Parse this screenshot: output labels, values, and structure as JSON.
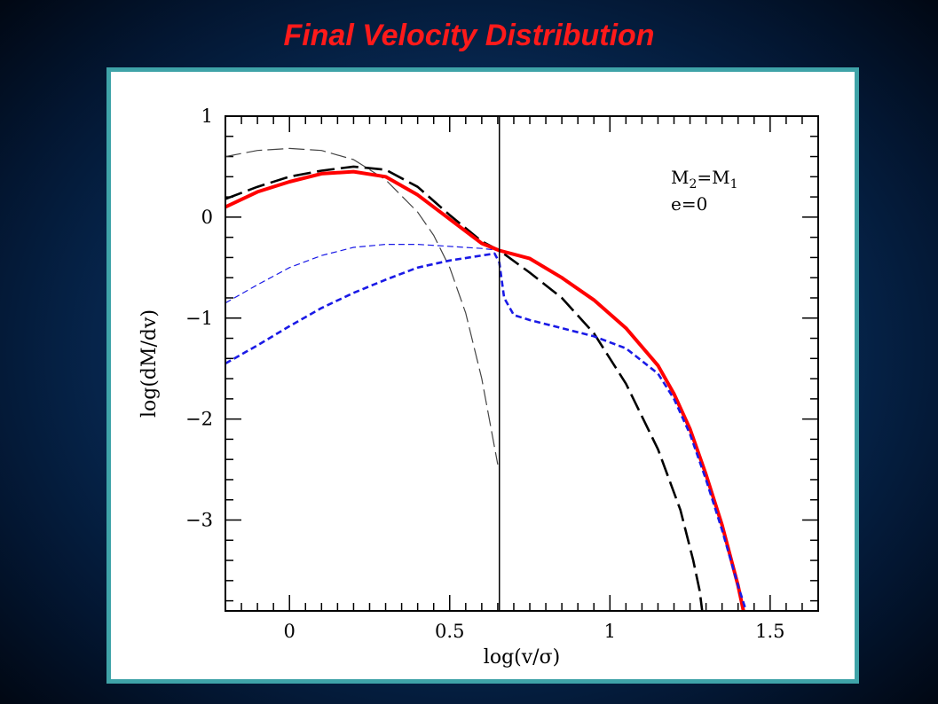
{
  "slide": {
    "title": "Final Velocity Distribution"
  },
  "colors": {
    "title": "#ff1a1a",
    "card_border": "#3fa3a8",
    "total_curve": "#ff0000",
    "blue_curve": "#1a1ae6",
    "black_curve": "#000000",
    "gray_curve": "#444444"
  },
  "chart_data": {
    "type": "line",
    "title": "",
    "xlabel": "log(v/σ)",
    "ylabel": "log(dM/dv)",
    "xlim": [
      -0.2,
      1.65
    ],
    "ylim": [
      -3.9,
      1.0
    ],
    "xticks": [
      0,
      0.5,
      1,
      1.5
    ],
    "xtick_labels": [
      "0",
      "0.5",
      "1",
      "1.5"
    ],
    "yticks": [
      1,
      0,
      -1,
      -2,
      -3
    ],
    "ytick_labels": [
      "1",
      "0",
      "−1",
      "−2",
      "−3"
    ],
    "grid": false,
    "vertical_line_x": 0.655,
    "annotation": {
      "line1_main": "M",
      "line1_sub1": "2",
      "line1_eq": "=M",
      "line1_sub2": "1",
      "line2": "e=0"
    },
    "series": [
      {
        "style": "solid-thick-red",
        "x": [
          -0.2,
          -0.1,
          0.0,
          0.1,
          0.2,
          0.3,
          0.4,
          0.5,
          0.6,
          0.655,
          0.75,
          0.85,
          0.95,
          1.05,
          1.15,
          1.2,
          1.25,
          1.3,
          1.35,
          1.4,
          1.42
        ],
        "y": [
          0.1,
          0.25,
          0.35,
          0.43,
          0.45,
          0.4,
          0.22,
          -0.02,
          -0.26,
          -0.33,
          -0.41,
          -0.6,
          -0.82,
          -1.1,
          -1.47,
          -1.75,
          -2.1,
          -2.55,
          -3.05,
          -3.65,
          -3.95
        ]
      },
      {
        "style": "long-dash-black",
        "x": [
          -0.2,
          -0.1,
          0.0,
          0.1,
          0.2,
          0.3,
          0.4,
          0.5,
          0.6,
          0.655,
          0.75,
          0.85,
          0.95,
          1.05,
          1.15,
          1.22,
          1.26,
          1.28,
          1.29
        ],
        "y": [
          0.18,
          0.3,
          0.4,
          0.46,
          0.5,
          0.47,
          0.3,
          0.02,
          -0.24,
          -0.33,
          -0.55,
          -0.8,
          -1.15,
          -1.65,
          -2.3,
          -2.9,
          -3.4,
          -3.7,
          -3.95
        ]
      },
      {
        "style": "long-dash-gray-thin",
        "x": [
          -0.2,
          -0.1,
          0.0,
          0.1,
          0.2,
          0.3,
          0.4,
          0.45,
          0.5,
          0.55,
          0.6,
          0.65
        ],
        "y": [
          0.6,
          0.66,
          0.68,
          0.66,
          0.57,
          0.37,
          0.05,
          -0.18,
          -0.5,
          -0.95,
          -1.6,
          -2.45
        ]
      },
      {
        "style": "short-dash-blue-thin",
        "x": [
          -0.2,
          -0.1,
          0.0,
          0.1,
          0.2,
          0.3,
          0.4,
          0.5,
          0.6,
          0.655
        ],
        "y": [
          -0.85,
          -0.67,
          -0.5,
          -0.38,
          -0.3,
          -0.27,
          -0.27,
          -0.29,
          -0.31,
          -0.33
        ]
      },
      {
        "style": "short-dash-blue-thick",
        "x": [
          -0.2,
          -0.1,
          0.0,
          0.1,
          0.2,
          0.3,
          0.4,
          0.5,
          0.6,
          0.64,
          0.655,
          0.67,
          0.7,
          0.75,
          0.85,
          0.95,
          1.05,
          1.15,
          1.2,
          1.25,
          1.3,
          1.35,
          1.4,
          1.43
        ],
        "y": [
          -1.45,
          -1.27,
          -1.08,
          -0.9,
          -0.75,
          -0.62,
          -0.5,
          -0.43,
          -0.38,
          -0.36,
          -0.45,
          -0.8,
          -0.97,
          -1.02,
          -1.1,
          -1.18,
          -1.3,
          -1.55,
          -1.8,
          -2.15,
          -2.6,
          -3.1,
          -3.65,
          -3.95
        ]
      }
    ]
  }
}
